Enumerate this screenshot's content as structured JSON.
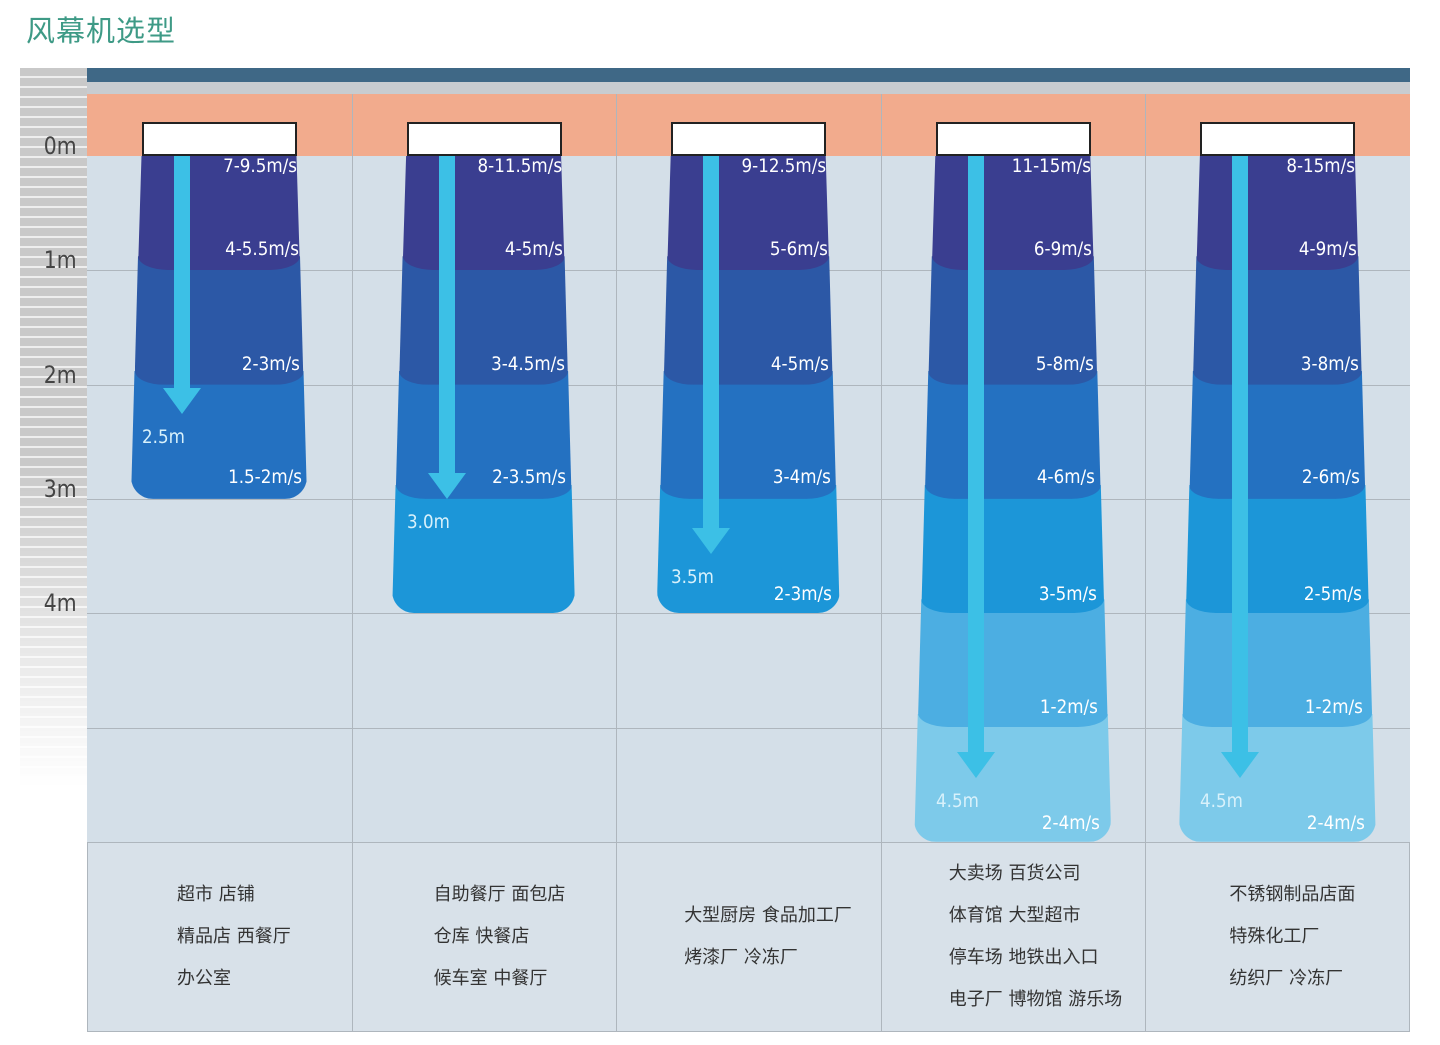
{
  "title": "风幕机选型",
  "axis": {
    "ticks": [
      "0m",
      "1m",
      "2m",
      "3m",
      "4m"
    ]
  },
  "colors": {
    "bands": [
      "#3a3e90",
      "#2c58a6",
      "#2471c1",
      "#1c96d8",
      "#4caee2",
      "#7dcaea"
    ],
    "orange": "#f2ab8d",
    "arrow": "#3cc0e6"
  },
  "columns": [
    {
      "speeds": [
        "7-9.5m/s",
        "4-5.5m/s",
        "2-3m/s",
        "1.5-2m/s"
      ],
      "throw": "2.5m",
      "throw_m": 2.5,
      "uses": [
        "超市 店铺",
        "精品店 西餐厅",
        "办公室"
      ]
    },
    {
      "speeds": [
        "8-11.5m/s",
        "4-5m/s",
        "3-4.5m/s",
        "2-3.5m/s"
      ],
      "throw": "3.0m",
      "throw_m": 3.0,
      "uses": [
        "自助餐厅 面包店",
        "仓库 快餐店",
        "候车室 中餐厅"
      ]
    },
    {
      "speeds": [
        "9-12.5m/s",
        "5-6m/s",
        "4-5m/s",
        "3-4m/s",
        "2-3m/s"
      ],
      "throw": "3.5m",
      "throw_m": 3.5,
      "uses": [
        "大型厨房 食品加工厂",
        "烤漆厂 冷冻厂"
      ]
    },
    {
      "speeds": [
        "11-15m/s",
        "6-9m/s",
        "5-8m/s",
        "4-6m/s",
        "3-5m/s",
        "1-2m/s",
        "2-4m/s"
      ],
      "throw": "4.5m",
      "throw_m": 4.5,
      "uses": [
        "大卖场 百货公司",
        "体育馆 大型超市",
        "停车场 地铁出入口",
        "电子厂 博物馆 游乐场"
      ]
    },
    {
      "speeds": [
        "8-15m/s",
        "4-9m/s",
        "3-8m/s",
        "2-6m/s",
        "2-5m/s",
        "1-2m/s",
        "2-4m/s"
      ],
      "throw": "4.5m",
      "throw_m": 4.5,
      "uses": [
        "不锈钢制品店面",
        "特殊化工厂",
        "纺织厂 冷冻厂"
      ]
    }
  ]
}
